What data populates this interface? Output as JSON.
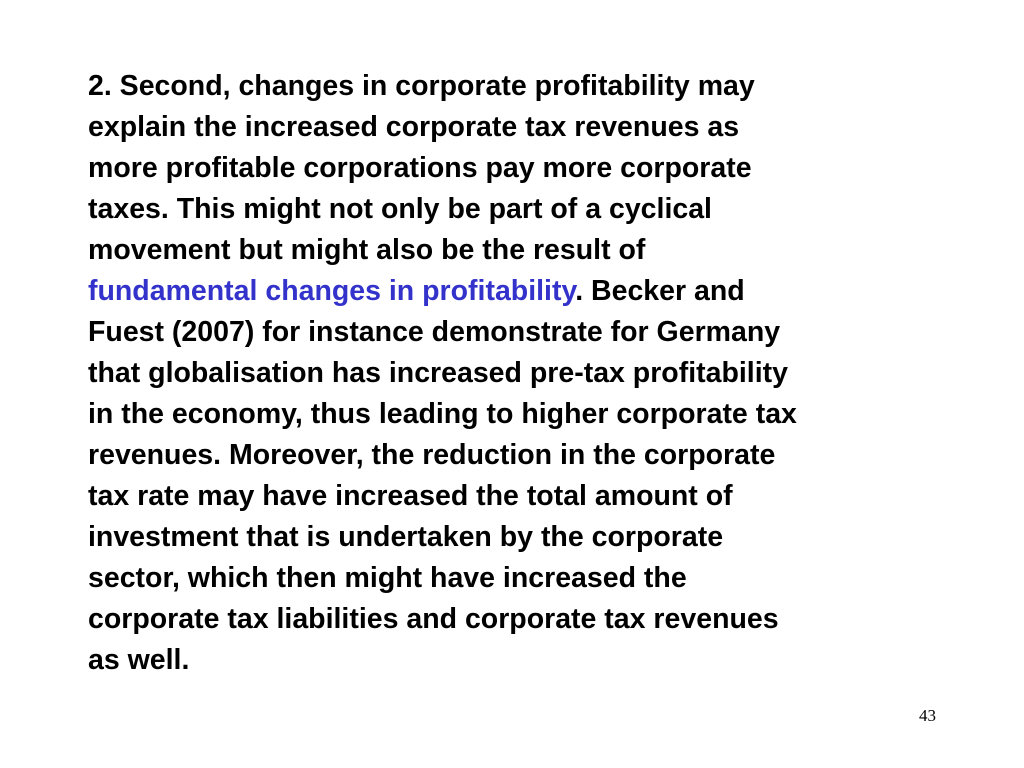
{
  "slide": {
    "paragraph": {
      "lines": [
        "2. Second, changes in corporate profitability may",
        "explain the increased corporate tax revenues as",
        "more profitable corporations pay more corporate",
        "taxes. This might not only be part of a cyclical",
        "movement but might also be the result of",
        "",
        "Fuest (2007) for instance demonstrate for Germany",
        "that globalisation has increased pre-tax profitability",
        "in the economy, thus leading to higher corporate tax",
        "revenues. Moreover, the reduction in the corporate",
        "tax rate may have increased the total amount of",
        "investment that is undertaken by the corporate",
        "sector, which then might have increased the",
        "corporate tax liabilities and corporate tax revenues",
        "as well."
      ],
      "highlight_text": "fundamental changes in profitability",
      "after_highlight_text": ". Becker and"
    },
    "page_number": "43",
    "colors": {
      "text": "#000000",
      "highlight": "#3333cc",
      "background": "#ffffff"
    }
  }
}
